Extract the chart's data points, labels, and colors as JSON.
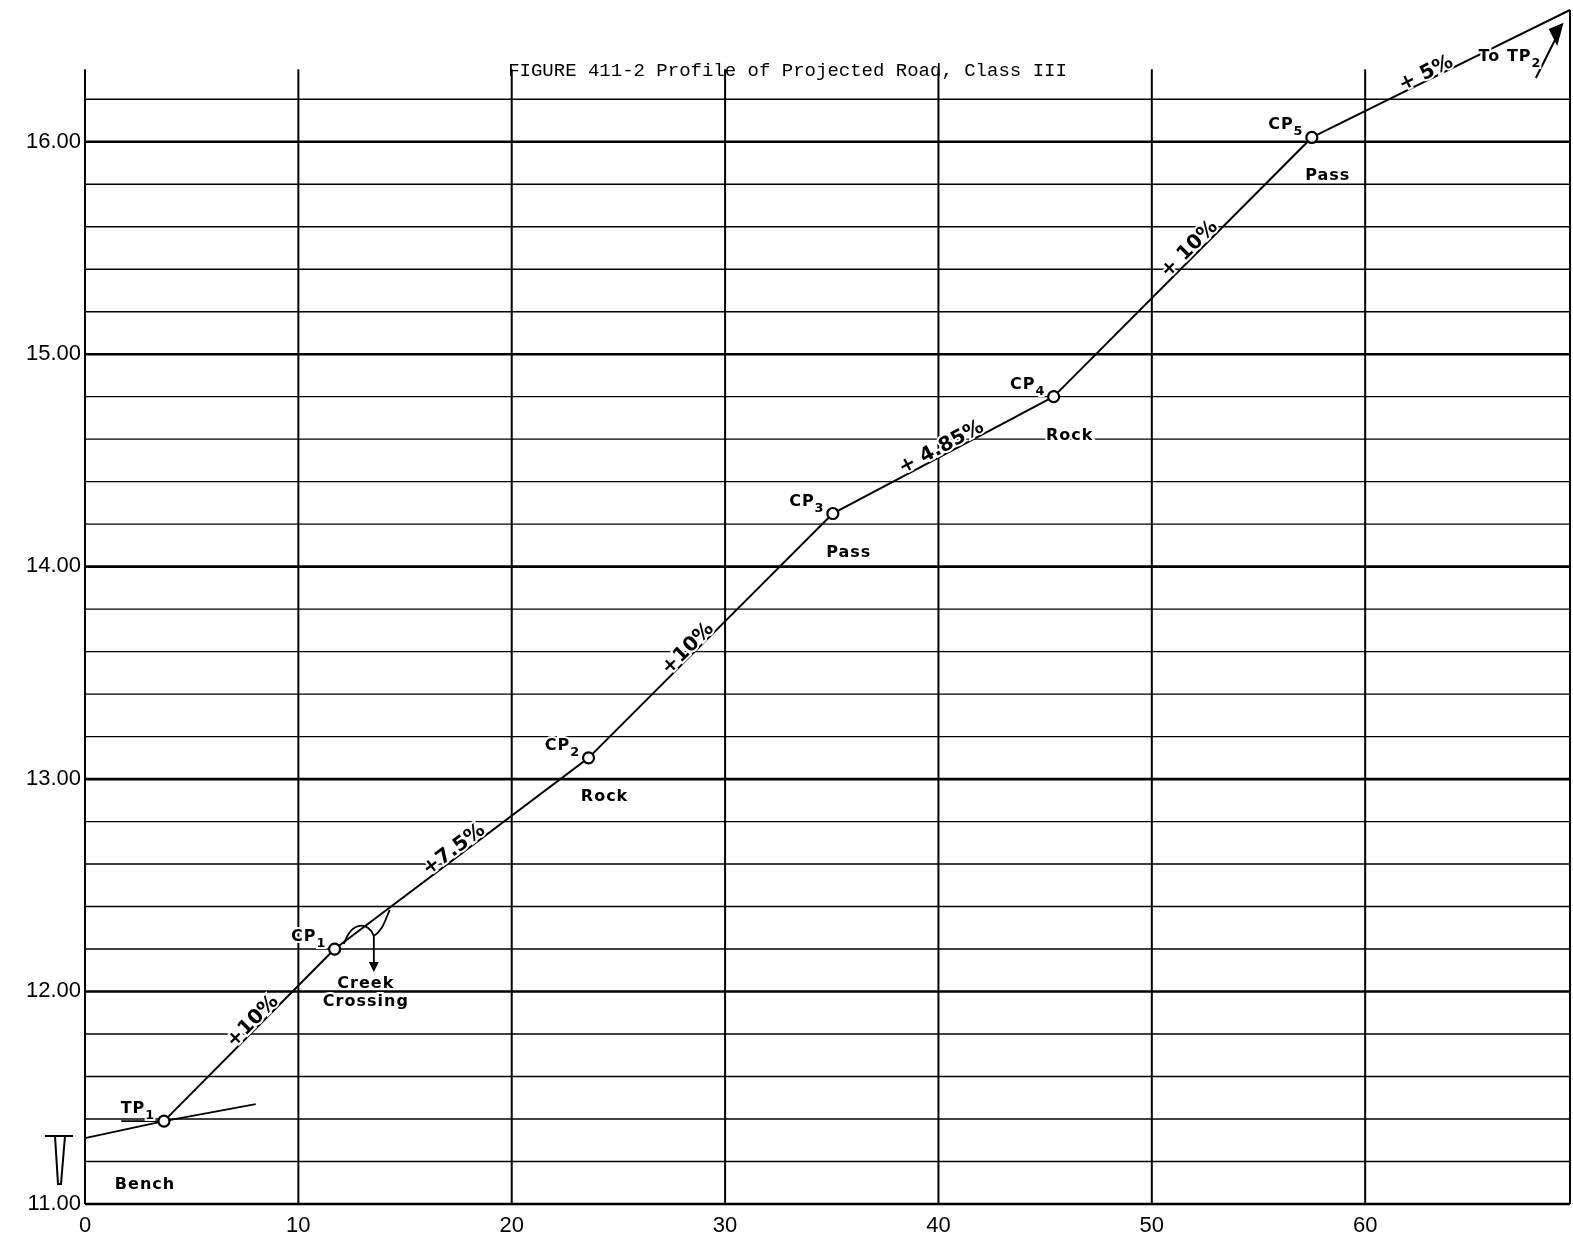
{
  "chart_data": {
    "type": "line",
    "title": "FIGURE 411-2  Profile of Projected Road, Class III",
    "xlim": [
      0,
      69.6
    ],
    "ylim": [
      11,
      16.62
    ],
    "xticks": [
      0,
      10,
      20,
      30,
      40,
      50,
      60
    ],
    "yticks": [
      {
        "value": 11,
        "label": "11.00"
      },
      {
        "value": 11.2,
        "label": null
      },
      {
        "value": 11.4,
        "label": null
      },
      {
        "value": 11.6,
        "label": null
      },
      {
        "value": 11.8,
        "label": null
      },
      {
        "value": 12,
        "label": "12.00"
      },
      {
        "value": 12.2,
        "label": null
      },
      {
        "value": 12.4,
        "label": null
      },
      {
        "value": 12.6,
        "label": null
      },
      {
        "value": 12.8,
        "label": null
      },
      {
        "value": 13,
        "label": "13.00"
      },
      {
        "value": 13.2,
        "label": null
      },
      {
        "value": 13.4,
        "label": null
      },
      {
        "value": 13.6,
        "label": null
      },
      {
        "value": 13.8,
        "label": null
      },
      {
        "value": 14,
        "label": "14.00"
      },
      {
        "value": 14.2,
        "label": null
      },
      {
        "value": 14.4,
        "label": null
      },
      {
        "value": 14.6,
        "label": null
      },
      {
        "value": 14.8,
        "label": null
      },
      {
        "value": 15,
        "label": "15.00"
      },
      {
        "value": 15.2,
        "label": null
      },
      {
        "value": 15.4,
        "label": null
      },
      {
        "value": 15.6,
        "label": null
      },
      {
        "value": 15.8,
        "label": null
      },
      {
        "value": 16,
        "label": "16.00"
      },
      {
        "value": 16.2,
        "label": null
      }
    ],
    "grid": true,
    "series": [
      {
        "color": "#000000",
        "marker": "none",
        "line_style": "solid",
        "x": [
          0,
          3.7,
          11.7,
          23.6,
          35.05,
          45.4,
          57.5,
          69.6
        ],
        "values": [
          11.31,
          11.39,
          12.2,
          13.1,
          14.25,
          14.8,
          16.02,
          16.62
        ]
      },
      {
        "type": "scatter",
        "color": "#000000",
        "marker": "circle",
        "x": [
          3.7,
          11.7,
          23.6,
          35.05,
          45.4,
          57.5
        ],
        "values": [
          11.39,
          12.2,
          13.1,
          14.25,
          14.8,
          16.02
        ]
      }
    ],
    "annotations": [
      {
        "text": "TP$_{1}$",
        "x": 3.7,
        "y": 11.39
      },
      {
        "text": "Bench",
        "x": 0,
        "y": 11.31
      },
      {
        "text": "CP$_{1}$",
        "x": 11.7,
        "y": 12.2
      },
      "Creek Crossing",
      {
        "text": "CP$_{2}$",
        "x": 23.6,
        "y": 13.1
      },
      {
        "text": "Rock",
        "x": 23.6,
        "y": 13.1
      },
      {
        "text": "CP$_{3}$",
        "x": 35.05,
        "y": 14.25
      },
      {
        "text": "Pass",
        "x": 35.05,
        "y": 14.25
      },
      {
        "text": "CP$_{4}$",
        "x": 45.4,
        "y": 14.8
      },
      {
        "text": "Rock",
        "x": 45.4,
        "y": 14.8
      },
      {
        "text": "CP$_{5}$",
        "x": 57.5,
        "y": 16.02
      },
      {
        "text": "Pass",
        "x": 57.5,
        "y": 16.02
      },
      {
        "text": "+10%",
        "x": 8.1,
        "y": 11.835
      },
      {
        "text": "+7.5%",
        "x": 17.5,
        "y": 12.64
      },
      {
        "text": "+10%",
        "x": 28.5,
        "y": 13.59
      },
      {
        "text": "+ 4.85%",
        "x": 40.3,
        "y": 14.53
      },
      {
        "text": "+ 10%",
        "x": 52.0,
        "y": 15.47
      },
      {
        "text": "+ 5%",
        "x": 63.0,
        "y": 16.29
      },
      {
        "text": "To TP$_{2}$",
        "x": 69.6,
        "y": 16.62
      }
    ]
  }
}
